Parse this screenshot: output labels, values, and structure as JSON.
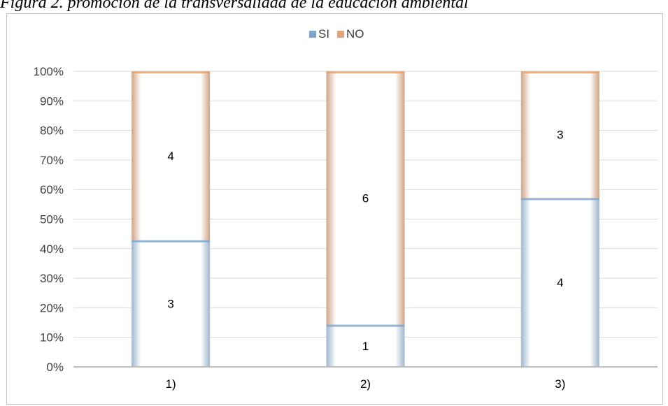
{
  "caption": "Figura 2. promoción de la transversalidad de la educación ambiental",
  "colors": {
    "si": "#7ea6cc",
    "no": "#e0a47a",
    "grid": "#d9d9d9",
    "axis": "#bfbfbf"
  },
  "chart_data": {
    "type": "bar",
    "stacked": true,
    "percent_stacked": true,
    "categories": [
      "1)",
      "2)",
      "3)"
    ],
    "series": [
      {
        "name": "SI",
        "values": [
          3,
          1,
          4
        ]
      },
      {
        "name": "NO",
        "values": [
          4,
          6,
          3
        ]
      }
    ],
    "ylim": [
      0,
      100
    ],
    "yticks": [
      "0%",
      "10%",
      "20%",
      "30%",
      "40%",
      "50%",
      "60%",
      "70%",
      "80%",
      "90%",
      "100%"
    ],
    "grid": true,
    "legend": "top-center"
  }
}
